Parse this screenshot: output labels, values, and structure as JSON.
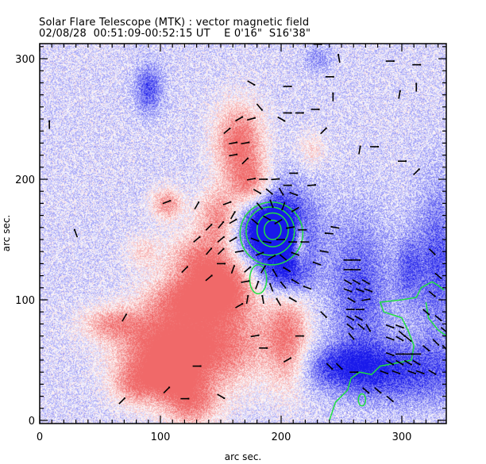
{
  "header": {
    "title": "Solar Flare Telescope (MTK) : vector magnetic field",
    "date": "02/08/28",
    "time_range": "00:51:09-00:52:15 UT",
    "position_ew": "E 0'16\"",
    "position_ns": "S16'38\""
  },
  "colors": {
    "positive_polarity": "#f07070",
    "negative_polarity": "#3030f0",
    "contour": "#20e040",
    "vector": "#000000",
    "frame": "#000000"
  },
  "chart_data": {
    "type": "heatmap",
    "title": "Solar Flare Telescope (MTK) : vector magnetic field",
    "subtitle": "02/08/28  00:51:09-00:52:15 UT    E 0'16\"  S16'38\"",
    "xlabel": "arc sec.",
    "ylabel": "arc sec.",
    "xlim": [
      0,
      337
    ],
    "ylim": [
      0,
      318
    ],
    "xticks": [
      0,
      100,
      200,
      300
    ],
    "yticks": [
      0,
      100,
      200,
      300
    ],
    "x_minor_step": 10,
    "y_minor_step": 10,
    "colormap": "blue (negative) - white - red (positive) longitudinal field",
    "overlays": [
      "transverse field vectors (black)",
      "intensity contours (green)"
    ],
    "positive_regions": [
      {
        "x": 165,
        "y": 230,
        "sx": 14,
        "sy": 22,
        "amp": 0.9
      },
      {
        "x": 175,
        "y": 195,
        "sx": 12,
        "sy": 14,
        "amp": 0.75
      },
      {
        "x": 148,
        "y": 170,
        "sx": 12,
        "sy": 16,
        "amp": 0.7
      },
      {
        "x": 105,
        "y": 180,
        "sx": 9,
        "sy": 9,
        "amp": 0.65
      },
      {
        "x": 135,
        "y": 130,
        "sx": 20,
        "sy": 18,
        "amp": 0.8
      },
      {
        "x": 155,
        "y": 110,
        "sx": 18,
        "sy": 16,
        "amp": 0.75
      },
      {
        "x": 120,
        "y": 100,
        "sx": 22,
        "sy": 12,
        "amp": 0.6
      },
      {
        "x": 140,
        "y": 65,
        "sx": 35,
        "sy": 25,
        "amp": 0.9
      },
      {
        "x": 100,
        "y": 55,
        "sx": 25,
        "sy": 22,
        "amp": 0.75
      },
      {
        "x": 205,
        "y": 70,
        "sx": 12,
        "sy": 30,
        "amp": 0.7
      },
      {
        "x": 60,
        "y": 80,
        "sx": 18,
        "sy": 10,
        "amp": 0.55
      },
      {
        "x": 80,
        "y": 30,
        "sx": 14,
        "sy": 12,
        "amp": 0.55
      },
      {
        "x": 125,
        "y": 15,
        "sx": 16,
        "sy": 14,
        "amp": 0.7
      },
      {
        "x": 110,
        "y": 40,
        "sx": 12,
        "sy": 12,
        "amp": 0.6
      },
      {
        "x": 215,
        "y": 148,
        "sx": 4,
        "sy": 12,
        "amp": 0.55
      },
      {
        "x": 225,
        "y": 225,
        "sx": 8,
        "sy": 10,
        "amp": 0.3
      },
      {
        "x": 85,
        "y": 140,
        "sx": 10,
        "sy": 10,
        "amp": 0.3
      }
    ],
    "negative_regions": [
      {
        "x": 193,
        "y": 158,
        "sx": 22,
        "sy": 26,
        "amp": 1.0
      },
      {
        "x": 192,
        "y": 158,
        "sx": 12,
        "sy": 12,
        "amp": 0.6
      },
      {
        "x": 205,
        "y": 120,
        "sx": 14,
        "sy": 14,
        "amp": 0.55
      },
      {
        "x": 265,
        "y": 110,
        "sx": 18,
        "sy": 40,
        "amp": 0.5
      },
      {
        "x": 300,
        "y": 40,
        "sx": 40,
        "sy": 18,
        "amp": 0.55
      },
      {
        "x": 330,
        "y": 130,
        "sx": 14,
        "sy": 45,
        "amp": 0.5
      },
      {
        "x": 250,
        "y": 45,
        "sx": 25,
        "sy": 12,
        "amp": 0.45
      },
      {
        "x": 90,
        "y": 275,
        "sx": 8,
        "sy": 14,
        "amp": 0.5
      },
      {
        "x": 230,
        "y": 300,
        "sx": 8,
        "sy": 8,
        "amp": 0.25
      },
      {
        "x": 305,
        "y": 125,
        "sx": 8,
        "sy": 20,
        "amp": 0.35
      }
    ],
    "contours": [
      {
        "cx": 193,
        "cy": 158,
        "rx": 7,
        "ry": 8
      },
      {
        "cx": 193,
        "cy": 158,
        "rx": 13,
        "ry": 14
      },
      {
        "cx": 191,
        "cy": 157,
        "rx": 20,
        "ry": 20
      },
      {
        "cx": 192,
        "cy": 155,
        "rx": 26,
        "ry": 26
      },
      {
        "cx": 181,
        "cy": 117,
        "rx": 7,
        "ry": 12
      }
    ],
    "contour_path_se": [
      [
        240,
        0
      ],
      [
        245,
        15
      ],
      [
        255,
        25
      ],
      [
        258,
        35
      ],
      [
        265,
        40
      ],
      [
        275,
        38
      ],
      [
        282,
        45
      ],
      [
        298,
        48
      ],
      [
        308,
        50
      ],
      [
        310,
        62
      ],
      [
        305,
        75
      ],
      [
        300,
        85
      ],
      [
        285,
        90
      ],
      [
        282,
        98
      ],
      [
        300,
        100
      ],
      [
        312,
        102
      ],
      [
        316,
        110
      ],
      [
        325,
        115
      ],
      [
        330,
        112
      ],
      [
        335,
        108
      ]
    ],
    "contour_path_se2": [
      [
        320,
        98
      ],
      [
        322,
        85
      ],
      [
        330,
        75
      ],
      [
        337,
        70
      ]
    ],
    "contour_small_se": {
      "cx": 267,
      "cy": 17,
      "rx": 3,
      "ry": 5
    },
    "vectors": [
      {
        "x": 165,
        "y": 250,
        "a": 30
      },
      {
        "x": 175,
        "y": 250,
        "a": 15
      },
      {
        "x": 155,
        "y": 240,
        "a": 40
      },
      {
        "x": 160,
        "y": 230,
        "a": 10
      },
      {
        "x": 170,
        "y": 230,
        "a": 10
      },
      {
        "x": 160,
        "y": 220,
        "a": 10
      },
      {
        "x": 170,
        "y": 215,
        "a": 45
      },
      {
        "x": 185,
        "y": 200,
        "a": 0
      },
      {
        "x": 175,
        "y": 200,
        "a": 10
      },
      {
        "x": 195,
        "y": 200,
        "a": 5
      },
      {
        "x": 205,
        "y": 195,
        "a": 0
      },
      {
        "x": 210,
        "y": 205,
        "a": 0
      },
      {
        "x": 180,
        "y": 190,
        "a": -30
      },
      {
        "x": 190,
        "y": 190,
        "a": -40
      },
      {
        "x": 200,
        "y": 190,
        "a": -60
      },
      {
        "x": 210,
        "y": 188,
        "a": -20
      },
      {
        "x": 182,
        "y": 178,
        "a": -50
      },
      {
        "x": 192,
        "y": 180,
        "a": -70
      },
      {
        "x": 202,
        "y": 178,
        "a": -110
      },
      {
        "x": 212,
        "y": 175,
        "a": -150
      },
      {
        "x": 178,
        "y": 165,
        "a": -40
      },
      {
        "x": 188,
        "y": 168,
        "a": -30
      },
      {
        "x": 198,
        "y": 165,
        "a": -150
      },
      {
        "x": 208,
        "y": 160,
        "a": -170
      },
      {
        "x": 218,
        "y": 158,
        "a": 180
      },
      {
        "x": 178,
        "y": 150,
        "a": -20
      },
      {
        "x": 188,
        "y": 148,
        "a": -10
      },
      {
        "x": 200,
        "y": 150,
        "a": 180
      },
      {
        "x": 210,
        "y": 148,
        "a": 180
      },
      {
        "x": 220,
        "y": 148,
        "a": 180
      },
      {
        "x": 182,
        "y": 138,
        "a": 20
      },
      {
        "x": 192,
        "y": 135,
        "a": 30
      },
      {
        "x": 202,
        "y": 135,
        "a": 140
      },
      {
        "x": 212,
        "y": 138,
        "a": 160
      },
      {
        "x": 172,
        "y": 125,
        "a": 40
      },
      {
        "x": 185,
        "y": 125,
        "a": 60
      },
      {
        "x": 195,
        "y": 122,
        "a": 120
      },
      {
        "x": 205,
        "y": 125,
        "a": 150
      },
      {
        "x": 180,
        "y": 112,
        "a": 70
      },
      {
        "x": 192,
        "y": 110,
        "a": 110
      },
      {
        "x": 202,
        "y": 112,
        "a": 130
      },
      {
        "x": 212,
        "y": 115,
        "a": 150
      },
      {
        "x": 172,
        "y": 100,
        "a": 80
      },
      {
        "x": 185,
        "y": 100,
        "a": 100
      },
      {
        "x": 198,
        "y": 98,
        "a": 120
      },
      {
        "x": 210,
        "y": 100,
        "a": 150
      },
      {
        "x": 222,
        "y": 110,
        "a": 160
      },
      {
        "x": 150,
        "y": 150,
        "a": 40
      },
      {
        "x": 140,
        "y": 160,
        "a": 45
      },
      {
        "x": 150,
        "y": 162,
        "a": 50
      },
      {
        "x": 160,
        "y": 165,
        "a": 30
      },
      {
        "x": 160,
        "y": 150,
        "a": 30
      },
      {
        "x": 140,
        "y": 140,
        "a": 50
      },
      {
        "x": 150,
        "y": 140,
        "a": 45
      },
      {
        "x": 165,
        "y": 140,
        "a": 10
      },
      {
        "x": 130,
        "y": 150,
        "a": 40
      },
      {
        "x": 160,
        "y": 125,
        "a": 70
      },
      {
        "x": 170,
        "y": 115,
        "a": 10
      },
      {
        "x": 155,
        "y": 180,
        "a": 20
      },
      {
        "x": 160,
        "y": 170,
        "a": 60
      },
      {
        "x": 105,
        "y": 181,
        "a": 20
      },
      {
        "x": 130,
        "y": 178,
        "a": 60
      },
      {
        "x": 150,
        "y": 130,
        "a": 0
      },
      {
        "x": 140,
        "y": 118,
        "a": 40
      },
      {
        "x": 165,
        "y": 95,
        "a": 30
      },
      {
        "x": 120,
        "y": 125,
        "a": 45
      },
      {
        "x": 70,
        "y": 85,
        "a": 60
      },
      {
        "x": 178,
        "y": 70,
        "a": 10
      },
      {
        "x": 185,
        "y": 60,
        "a": 0
      },
      {
        "x": 215,
        "y": 70,
        "a": 0
      },
      {
        "x": 205,
        "y": 50,
        "a": 30
      },
      {
        "x": 130,
        "y": 45,
        "a": 0
      },
      {
        "x": 105,
        "y": 25,
        "a": 45
      },
      {
        "x": 120,
        "y": 18,
        "a": 0
      },
      {
        "x": 68,
        "y": 16,
        "a": 45
      },
      {
        "x": 150,
        "y": 20,
        "a": -30
      },
      {
        "x": 8,
        "y": 245,
        "a": 90
      },
      {
        "x": 30,
        "y": 155,
        "a": 110
      },
      {
        "x": 225,
        "y": 195,
        "a": 5
      },
      {
        "x": 240,
        "y": 155,
        "a": 175
      },
      {
        "x": 245,
        "y": 160,
        "a": 170
      },
      {
        "x": 236,
        "y": 140,
        "a": 170
      },
      {
        "x": 230,
        "y": 130,
        "a": 160
      },
      {
        "x": 255,
        "y": 133,
        "a": 0
      },
      {
        "x": 262,
        "y": 133,
        "a": 0
      },
      {
        "x": 255,
        "y": 125,
        "a": 0
      },
      {
        "x": 262,
        "y": 125,
        "a": 0
      },
      {
        "x": 255,
        "y": 115,
        "a": -30
      },
      {
        "x": 262,
        "y": 115,
        "a": -30
      },
      {
        "x": 270,
        "y": 115,
        "a": -30
      },
      {
        "x": 255,
        "y": 108,
        "a": -20
      },
      {
        "x": 265,
        "y": 108,
        "a": -20
      },
      {
        "x": 272,
        "y": 108,
        "a": -20
      },
      {
        "x": 258,
        "y": 100,
        "a": -30
      },
      {
        "x": 270,
        "y": 100,
        "a": 10
      },
      {
        "x": 257,
        "y": 92,
        "a": 0
      },
      {
        "x": 265,
        "y": 92,
        "a": 0
      },
      {
        "x": 257,
        "y": 85,
        "a": -30
      },
      {
        "x": 264,
        "y": 85,
        "a": -30
      },
      {
        "x": 235,
        "y": 88,
        "a": -45
      },
      {
        "x": 257,
        "y": 78,
        "a": -40
      },
      {
        "x": 266,
        "y": 78,
        "a": -40
      },
      {
        "x": 272,
        "y": 77,
        "a": -60
      },
      {
        "x": 258,
        "y": 70,
        "a": -50
      },
      {
        "x": 290,
        "y": 78,
        "a": -20
      },
      {
        "x": 298,
        "y": 78,
        "a": -20
      },
      {
        "x": 300,
        "y": 72,
        "a": -40
      },
      {
        "x": 290,
        "y": 68,
        "a": -20
      },
      {
        "x": 298,
        "y": 68,
        "a": -30
      },
      {
        "x": 305,
        "y": 68,
        "a": -40
      },
      {
        "x": 290,
        "y": 55,
        "a": -20
      },
      {
        "x": 298,
        "y": 55,
        "a": 0
      },
      {
        "x": 305,
        "y": 55,
        "a": 0
      },
      {
        "x": 312,
        "y": 55,
        "a": 0
      },
      {
        "x": 290,
        "y": 48,
        "a": -30
      },
      {
        "x": 298,
        "y": 48,
        "a": -30
      },
      {
        "x": 305,
        "y": 48,
        "a": -30
      },
      {
        "x": 312,
        "y": 48,
        "a": -30
      },
      {
        "x": 285,
        "y": 40,
        "a": -20
      },
      {
        "x": 295,
        "y": 40,
        "a": -20
      },
      {
        "x": 308,
        "y": 40,
        "a": -20
      },
      {
        "x": 315,
        "y": 40,
        "a": -20
      },
      {
        "x": 325,
        "y": 40,
        "a": -30
      },
      {
        "x": 240,
        "y": 45,
        "a": -45
      },
      {
        "x": 248,
        "y": 45,
        "a": -45
      },
      {
        "x": 260,
        "y": 40,
        "a": 0
      },
      {
        "x": 270,
        "y": 25,
        "a": -40
      },
      {
        "x": 280,
        "y": 25,
        "a": -40
      },
      {
        "x": 290,
        "y": 18,
        "a": -40
      },
      {
        "x": 320,
        "y": 90,
        "a": -40
      },
      {
        "x": 330,
        "y": 85,
        "a": -40
      },
      {
        "x": 335,
        "y": 75,
        "a": -40
      },
      {
        "x": 328,
        "y": 65,
        "a": -45
      },
      {
        "x": 336,
        "y": 60,
        "a": -45
      },
      {
        "x": 320,
        "y": 60,
        "a": -40
      },
      {
        "x": 325,
        "y": 140,
        "a": -45
      },
      {
        "x": 330,
        "y": 120,
        "a": -40
      },
      {
        "x": 325,
        "y": 105,
        "a": -40
      },
      {
        "x": 175,
        "y": 280,
        "a": -30
      },
      {
        "x": 205,
        "y": 277,
        "a": 0
      },
      {
        "x": 182,
        "y": 260,
        "a": -50
      },
      {
        "x": 240,
        "y": 285,
        "a": 0
      },
      {
        "x": 243,
        "y": 268,
        "a": 90
      },
      {
        "x": 298,
        "y": 270,
        "a": 80
      },
      {
        "x": 290,
        "y": 298,
        "a": 0
      },
      {
        "x": 312,
        "y": 295,
        "a": 0
      },
      {
        "x": 312,
        "y": 276,
        "a": 90
      },
      {
        "x": 230,
        "y": 312,
        "a": 0
      },
      {
        "x": 248,
        "y": 300,
        "a": 100
      },
      {
        "x": 265,
        "y": 224,
        "a": 80
      },
      {
        "x": 300,
        "y": 215,
        "a": 0
      },
      {
        "x": 312,
        "y": 206,
        "a": 45
      },
      {
        "x": 277,
        "y": 227,
        "a": 0
      },
      {
        "x": 235,
        "y": 240,
        "a": 45
      },
      {
        "x": 228,
        "y": 258,
        "a": 0
      },
      {
        "x": 205,
        "y": 255,
        "a": 0
      },
      {
        "x": 215,
        "y": 255,
        "a": 0
      },
      {
        "x": 200,
        "y": 250,
        "a": -30
      }
    ]
  }
}
